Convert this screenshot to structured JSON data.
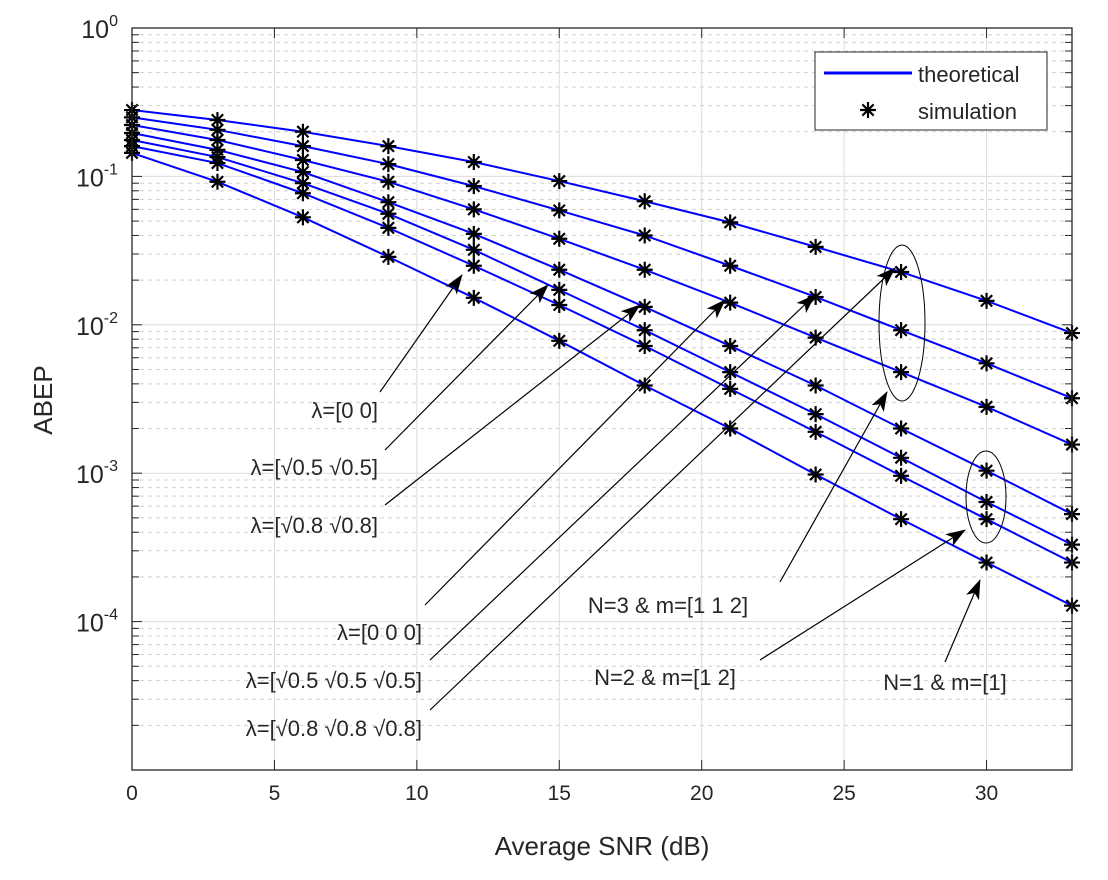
{
  "chart_data": {
    "type": "line",
    "title": "",
    "xlabel": "Average SNR (dB)",
    "ylabel": "ABEP",
    "xlim": [
      0,
      33
    ],
    "ylim": [
      1e-05,
      1
    ],
    "yscale": "log",
    "grid": true,
    "minor_grid": true,
    "x_ticks": [
      0,
      5,
      10,
      15,
      20,
      25,
      30
    ],
    "y_ticks": [
      {
        "base": "10",
        "exp": "0",
        "v": 1
      },
      {
        "base": "10",
        "exp": "-1",
        "v": 0.1
      },
      {
        "base": "10",
        "exp": "-2",
        "v": 0.01
      },
      {
        "base": "10",
        "exp": "-3",
        "v": 0.001
      },
      {
        "base": "10",
        "exp": "-4",
        "v": 0.0001
      }
    ],
    "legend": {
      "placement": "top-right",
      "entries": [
        {
          "label": "theoretical",
          "style": "line",
          "color": "#0000ff"
        },
        {
          "label": "simulation",
          "style": "marker-asterisk",
          "color": "#000000"
        }
      ]
    },
    "x": [
      0,
      3,
      6,
      9,
      12,
      15,
      18,
      21,
      24,
      27,
      30,
      33
    ],
    "series": [
      {
        "values": [
          0.28,
          0.24,
          0.2,
          0.16,
          0.125,
          0.093,
          0.068,
          0.049,
          0.0335,
          0.0227,
          0.0145,
          0.0088
        ]
      },
      {
        "values": [
          0.25,
          0.206,
          0.16,
          0.121,
          0.086,
          0.059,
          0.04,
          0.025,
          0.0154,
          0.0092,
          0.0055,
          0.0032
        ]
      },
      {
        "values": [
          0.222,
          0.176,
          0.129,
          0.092,
          0.06,
          0.038,
          0.0235,
          0.0141,
          0.0082,
          0.0048,
          0.0028,
          0.00156
        ]
      },
      {
        "values": [
          0.196,
          0.151,
          0.107,
          0.067,
          0.041,
          0.0235,
          0.0132,
          0.0072,
          0.0039,
          0.002,
          0.00104,
          0.00053
        ]
      },
      {
        "values": [
          0.176,
          0.135,
          0.09,
          0.056,
          0.032,
          0.0172,
          0.0092,
          0.0048,
          0.0025,
          0.00127,
          0.00064,
          0.00033
        ]
      },
      {
        "values": [
          0.16,
          0.123,
          0.077,
          0.045,
          0.025,
          0.0136,
          0.0072,
          0.0037,
          0.0019,
          0.00096,
          0.00049,
          0.00025
        ]
      },
      {
        "values": [
          0.144,
          0.092,
          0.053,
          0.0287,
          0.0152,
          0.0078,
          0.0039,
          0.002,
          0.00098,
          0.00049,
          0.00025,
          0.000128
        ]
      }
    ],
    "annotations": [
      {
        "text": "λ=[0 0]"
      },
      {
        "text": "λ=[√0.5 √0.5]"
      },
      {
        "text": "λ=[√0.8 √0.8]"
      },
      {
        "text": "λ=[0 0 0]"
      },
      {
        "text": "λ=[√0.5 √0.5 √0.5]"
      },
      {
        "text": "λ=[√0.8 √0.8 √0.8]"
      },
      {
        "text": "N=3 & m=[1 1 2]"
      },
      {
        "text": "N=2 & m=[1 2]"
      },
      {
        "text": "N=1 & m=[1]"
      }
    ],
    "line_color": "#0000ff",
    "marker_color": "#000000"
  }
}
